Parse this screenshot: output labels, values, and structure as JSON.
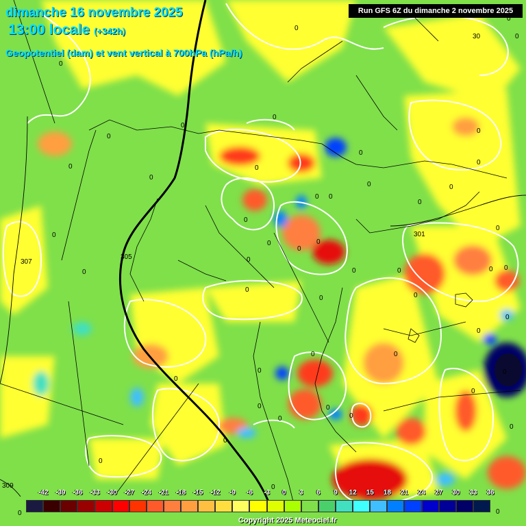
{
  "header": {
    "date": "dimanche 16 novembre 2025",
    "time": "13:00 locale",
    "lead": "(+342h)",
    "subtitle": "Geopotentiel (dam) et vent vertical à 700hPa (hPa/h)",
    "run": "Run GFS 6Z du dimanche 2 novembre 2025"
  },
  "contour_labels": [
    "0",
    "301",
    "305",
    "307",
    "309",
    "30"
  ],
  "legend": {
    "values": [
      "-42",
      "-39",
      "-36",
      "-33",
      "-30",
      "-27",
      "-24",
      "-21",
      "-18",
      "-15",
      "-12",
      "-9",
      "-6",
      "-3",
      "0",
      "3",
      "6",
      "9",
      "12",
      "15",
      "18",
      "21",
      "24",
      "27",
      "30",
      "33",
      "36"
    ],
    "colors": [
      "#1a1a40",
      "#3a0000",
      "#6a0000",
      "#990000",
      "#cc0000",
      "#ff0000",
      "#ff3300",
      "#ff5a2a",
      "#ff7f3f",
      "#ff9f40",
      "#ffbf40",
      "#ffdf40",
      "#ffff60",
      "#ffff00",
      "#dfff00",
      "#aaff00",
      "#7fe04a",
      "#4ad06a",
      "#40e0c0",
      "#40ffff",
      "#40bfff",
      "#0080ff",
      "#0040ff",
      "#0000cc",
      "#000099",
      "#000066",
      "#001a4d"
    ]
  },
  "footer": {
    "copyright": "Copyright 2025 Meteociel.fr"
  }
}
